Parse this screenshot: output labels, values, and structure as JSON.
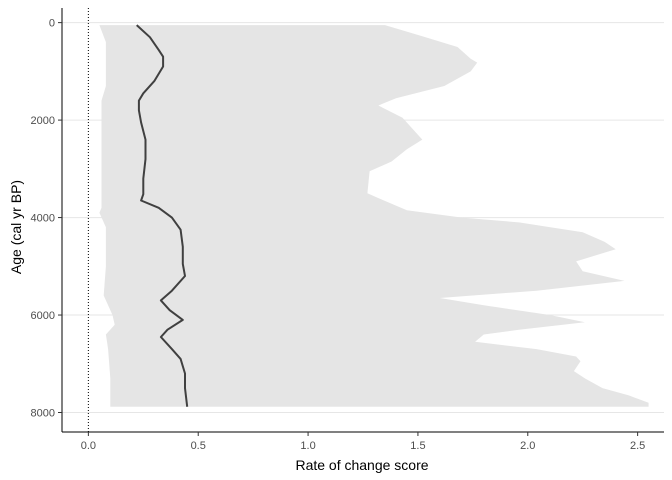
{
  "chart_data": {
    "type": "area",
    "xlabel": "Rate of change score",
    "ylabel": "Age (cal yr BP)",
    "xlim": [
      -0.12,
      2.62
    ],
    "ylim": [
      8400,
      -300
    ],
    "x_ticks": [
      0.0,
      0.5,
      1.0,
      1.5,
      2.0,
      2.5
    ],
    "x_tick_labels": [
      "0.0",
      "0.5",
      "1.0",
      "1.5",
      "2.0",
      "2.5"
    ],
    "y_ticks": [
      0,
      2000,
      4000,
      6000,
      8000
    ],
    "y_tick_labels": [
      "0",
      "2000",
      "4000",
      "6000",
      "8000"
    ],
    "y_reversed": true,
    "grid": "horizontal",
    "reference_line": {
      "x": 0,
      "style": "dotted"
    },
    "colors": {
      "band": "#e5e5e5",
      "line": "#404040",
      "grid": "#e6e6e6",
      "axis": "#000000"
    },
    "series": [
      {
        "role": "band_upper",
        "points": [
          [
            1.35,
            50
          ],
          [
            1.52,
            280
          ],
          [
            1.68,
            500
          ],
          [
            1.74,
            740
          ],
          [
            1.77,
            820
          ],
          [
            1.74,
            1000
          ],
          [
            1.62,
            1300
          ],
          [
            1.4,
            1550
          ],
          [
            1.32,
            1700
          ],
          [
            1.43,
            1950
          ],
          [
            1.52,
            2400
          ],
          [
            1.45,
            2600
          ],
          [
            1.38,
            2850
          ],
          [
            1.28,
            3050
          ],
          [
            1.27,
            3500
          ],
          [
            1.32,
            3600
          ],
          [
            1.45,
            3850
          ],
          [
            1.7,
            4000
          ],
          [
            1.96,
            4100
          ],
          [
            2.25,
            4300
          ],
          [
            2.35,
            4500
          ],
          [
            2.4,
            4650
          ],
          [
            2.22,
            4900
          ],
          [
            2.25,
            5100
          ],
          [
            2.44,
            5300
          ],
          [
            2.04,
            5500
          ],
          [
            1.6,
            5650
          ],
          [
            1.8,
            5800
          ],
          [
            2.1,
            6000
          ],
          [
            2.26,
            6150
          ],
          [
            1.96,
            6300
          ],
          [
            1.8,
            6400
          ],
          [
            1.76,
            6550
          ],
          [
            2.04,
            6700
          ],
          [
            2.22,
            6850
          ],
          [
            2.24,
            6950
          ],
          [
            2.21,
            7150
          ],
          [
            2.26,
            7300
          ],
          [
            2.34,
            7500
          ],
          [
            2.46,
            7650
          ],
          [
            2.55,
            7800
          ],
          [
            2.55,
            7880
          ]
        ]
      },
      {
        "role": "band_lower",
        "points": [
          [
            0.05,
            50
          ],
          [
            0.08,
            400
          ],
          [
            0.08,
            800
          ],
          [
            0.08,
            1300
          ],
          [
            0.06,
            1600
          ],
          [
            0.06,
            2200
          ],
          [
            0.06,
            3000
          ],
          [
            0.06,
            3800
          ],
          [
            0.05,
            3900
          ],
          [
            0.08,
            4200
          ],
          [
            0.08,
            5000
          ],
          [
            0.07,
            5600
          ],
          [
            0.11,
            6000
          ],
          [
            0.12,
            6200
          ],
          [
            0.08,
            6400
          ],
          [
            0.09,
            6700
          ],
          [
            0.1,
            7300
          ],
          [
            0.1,
            7880
          ]
        ]
      },
      {
        "role": "median",
        "points": [
          [
            0.22,
            50
          ],
          [
            0.28,
            300
          ],
          [
            0.32,
            560
          ],
          [
            0.34,
            700
          ],
          [
            0.34,
            900
          ],
          [
            0.3,
            1200
          ],
          [
            0.25,
            1450
          ],
          [
            0.23,
            1600
          ],
          [
            0.23,
            1800
          ],
          [
            0.24,
            2050
          ],
          [
            0.26,
            2400
          ],
          [
            0.26,
            2800
          ],
          [
            0.25,
            3200
          ],
          [
            0.25,
            3520
          ],
          [
            0.24,
            3650
          ],
          [
            0.32,
            3800
          ],
          [
            0.38,
            4000
          ],
          [
            0.42,
            4250
          ],
          [
            0.43,
            4600
          ],
          [
            0.43,
            4950
          ],
          [
            0.44,
            5200
          ],
          [
            0.38,
            5500
          ],
          [
            0.33,
            5700
          ],
          [
            0.37,
            5900
          ],
          [
            0.43,
            6100
          ],
          [
            0.36,
            6300
          ],
          [
            0.33,
            6450
          ],
          [
            0.38,
            6700
          ],
          [
            0.42,
            6900
          ],
          [
            0.44,
            7200
          ],
          [
            0.44,
            7500
          ],
          [
            0.45,
            7880
          ]
        ]
      }
    ]
  }
}
